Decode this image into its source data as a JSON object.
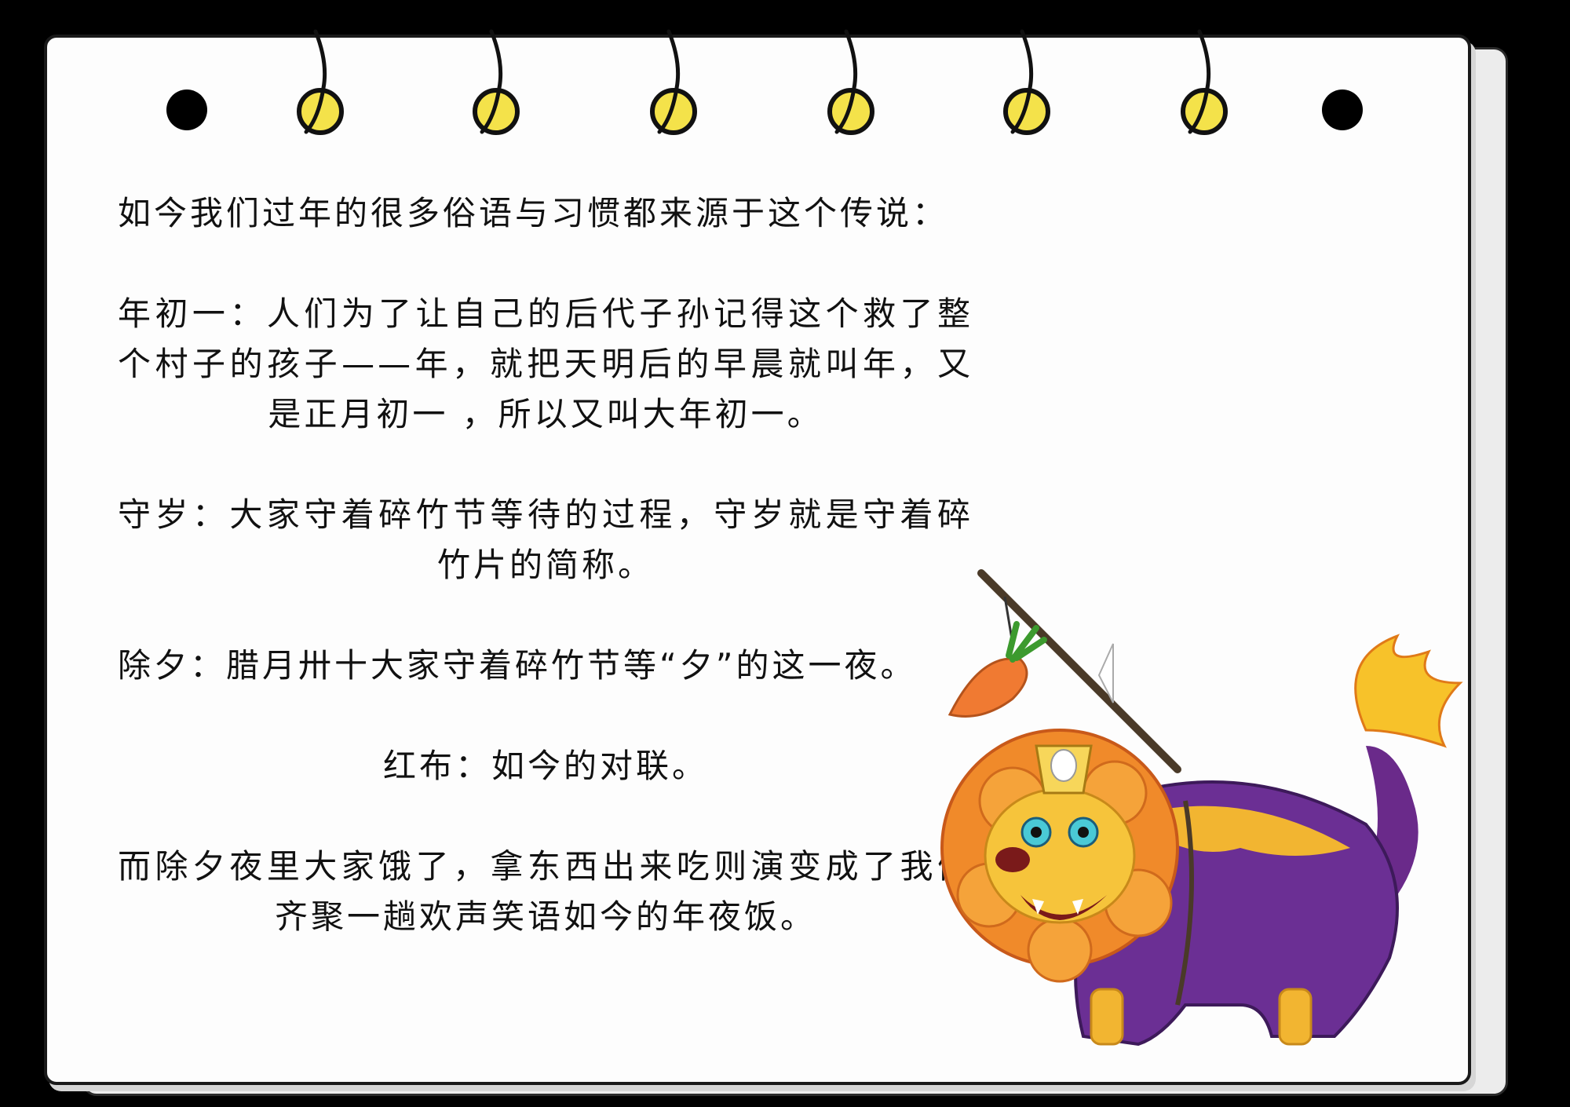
{
  "content": {
    "intro": "如今我们过年的很多俗语与习惯都来源于这个传说：",
    "p1": "年初一：人们为了让自己的后代子孙记得这个救了整个村子的孩子——年，就把天明后的早晨就叫年，又是正月初一 ，所以又叫大年初一。",
    "p2": "守岁：大家守着碎竹节等待的过程，守岁就是守着碎竹片的简称。",
    "p3": "除夕：腊月卅十大家守着碎竹节等“夕”的这一夜。",
    "p4": "红布：如今的对联。",
    "p5": "而除夕夜里大家饿了，拿东西出来吃则演变成了我们齐聚一趟欢声笑语如今的年夜饭。"
  },
  "colors": {
    "background": "#000000",
    "paper": "#fdfdfd",
    "ring_fill": "#f4e24a",
    "hole": "#000000"
  },
  "icons": [
    "notebook-ring-icon",
    "binder-hole-icon",
    "nian-lion-illustration",
    "carrot-icon"
  ]
}
